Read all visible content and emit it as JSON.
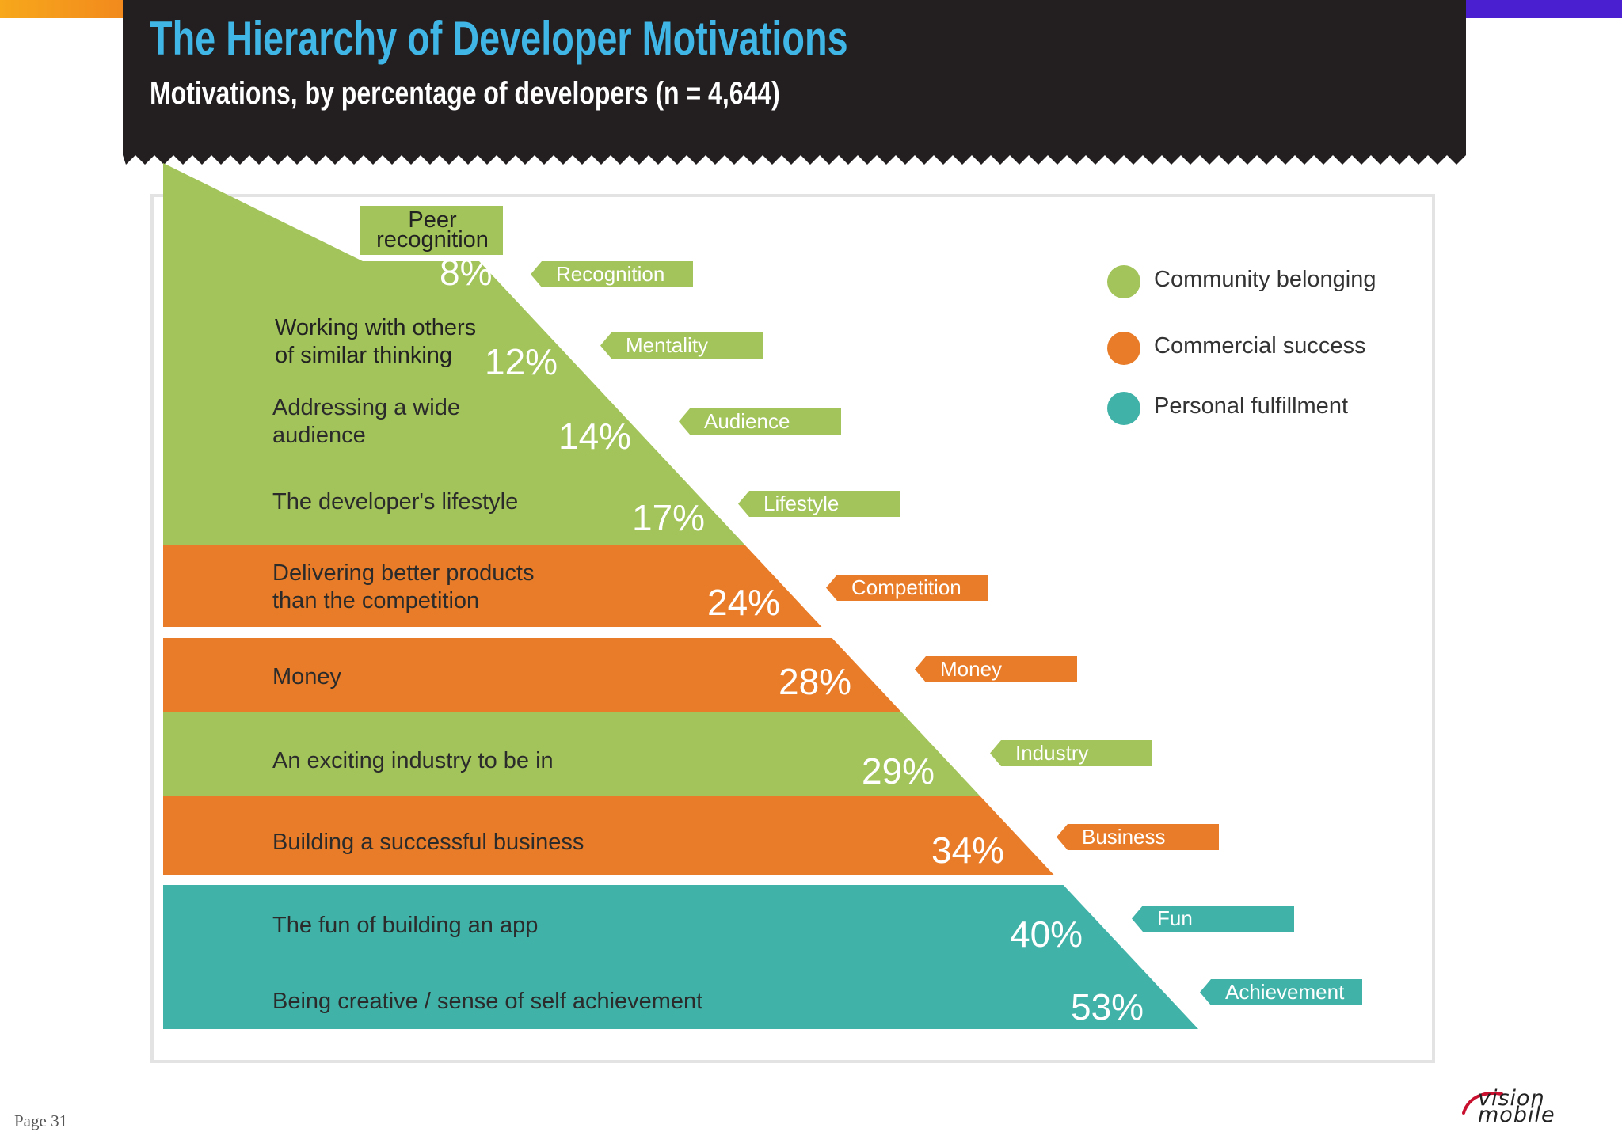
{
  "header": {
    "title": "The Hierarchy of Developer Motivations",
    "subtitle": "Motivations, by percentage of developers (n = 4,644)"
  },
  "legend": [
    {
      "label": "Community belonging",
      "color": "#a3c45a"
    },
    {
      "label": "Commercial success",
      "color": "#e87c28"
    },
    {
      "label": "Personal fulfillment",
      "color": "#40b2a8"
    }
  ],
  "chart_data": {
    "type": "pyramid",
    "title": "The Hierarchy of Developer Motivations",
    "subtitle": "Motivations, by percentage of developers (n = 4,644)",
    "unit": "%",
    "levels": [
      {
        "label": "Peer recognition",
        "tag": "Recognition",
        "value": 8,
        "value_label": "8%",
        "category": "Community belonging"
      },
      {
        "label": "Working with others of similar thinking",
        "tag": "Mentality",
        "value": 12,
        "value_label": "12%",
        "category": "Community belonging"
      },
      {
        "label": "Addressing a wide audience",
        "tag": "Audience",
        "value": 14,
        "value_label": "14%",
        "category": "Community belonging"
      },
      {
        "label": "The developer's lifestyle",
        "tag": "Lifestyle",
        "value": 17,
        "value_label": "17%",
        "category": "Community belonging"
      },
      {
        "label": "Delivering better products than the competition",
        "tag": "Competition",
        "value": 24,
        "value_label": "24%",
        "category": "Commercial success"
      },
      {
        "label": "Money",
        "tag": "Money",
        "value": 28,
        "value_label": "28%",
        "category": "Commercial success"
      },
      {
        "label": "An exciting industry to be in",
        "tag": "Industry",
        "value": 29,
        "value_label": "29%",
        "category": "Community belonging"
      },
      {
        "label": "Building a successful business",
        "tag": "Business",
        "value": 34,
        "value_label": "34%",
        "category": "Commercial success"
      },
      {
        "label": "The fun of building an app",
        "tag": "Fun",
        "value": 40,
        "value_label": "40%",
        "category": "Personal fulfillment"
      },
      {
        "label": "Being creative / sense of self achievement",
        "tag": "Achievement",
        "value": 53,
        "value_label": "53%",
        "category": "Personal fulfillment"
      }
    ]
  },
  "footer": {
    "page": "Page 31",
    "logo_line1": "vision",
    "logo_line2": "mobile"
  }
}
